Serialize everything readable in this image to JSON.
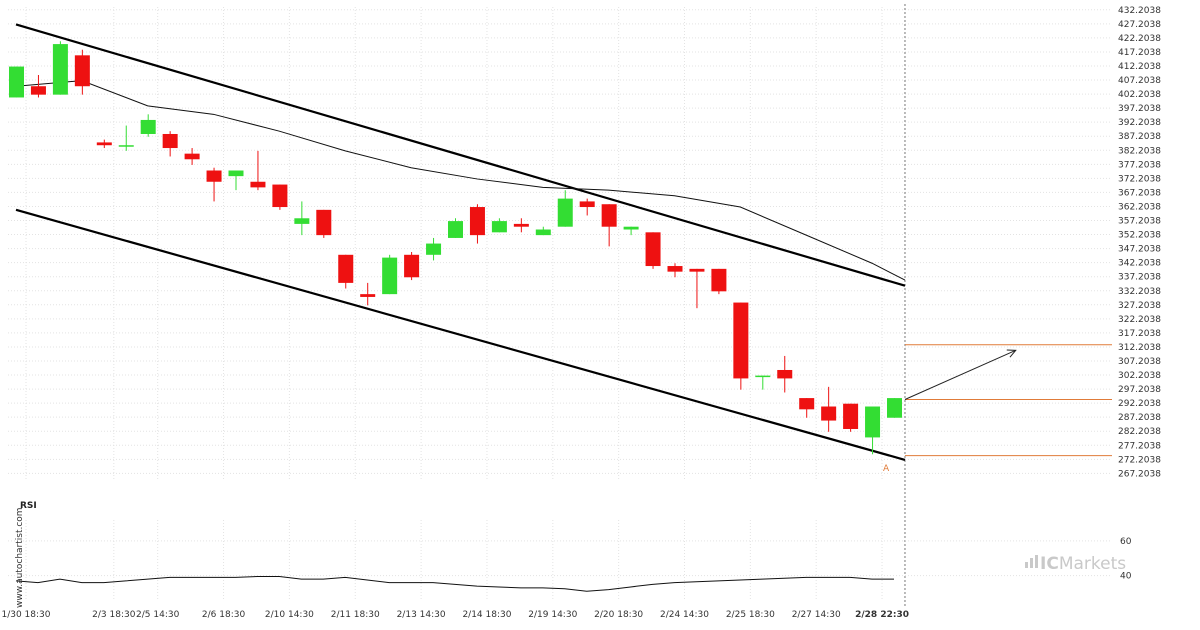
{
  "chart_data": {
    "type": "candlestick",
    "y_ticks": [
      "432.2038",
      "427.2038",
      "422.2038",
      "417.2038",
      "412.2038",
      "407.2038",
      "402.2038",
      "397.2038",
      "392.2038",
      "387.2038",
      "382.2038",
      "377.2038",
      "372.2038",
      "367.2038",
      "362.2038",
      "357.2038",
      "352.2038",
      "347.2038",
      "342.2038",
      "337.2038",
      "332.2038",
      "327.2038",
      "322.2038",
      "317.2038",
      "312.2038",
      "307.2038",
      "302.2038",
      "297.2038",
      "292.2038",
      "287.2038",
      "282.2038",
      "277.2038",
      "272.2038",
      "267.2038"
    ],
    "ylim": [
      265.2,
      433.2
    ],
    "x_ticks": [
      {
        "label": "1/30 18:30",
        "index": 0
      },
      {
        "label": "2/3 18:30",
        "index": 4
      },
      {
        "label": "2/5 14:30",
        "index": 6
      },
      {
        "label": "2/6 18:30",
        "index": 9
      },
      {
        "label": "2/10 14:30",
        "index": 12
      },
      {
        "label": "2/11 18:30",
        "index": 15
      },
      {
        "label": "2/13 14:30",
        "index": 18
      },
      {
        "label": "2/14 18:30",
        "index": 21
      },
      {
        "label": "2/19 14:30",
        "index": 24
      },
      {
        "label": "2/20 18:30",
        "index": 27
      },
      {
        "label": "2/24 14:30",
        "index": 30
      },
      {
        "label": "2/25 18:30",
        "index": 33
      },
      {
        "label": "2/27 14:30",
        "index": 36
      },
      {
        "label": "2/28 22:30",
        "index": 39,
        "bold": true
      }
    ],
    "candles": [
      {
        "o": 401,
        "h": 412,
        "l": 401,
        "c": 412
      },
      {
        "o": 405,
        "h": 409,
        "l": 401,
        "c": 402
      },
      {
        "o": 402,
        "h": 421,
        "l": 402,
        "c": 420
      },
      {
        "o": 416,
        "h": 418,
        "l": 402,
        "c": 405
      },
      {
        "o": 385,
        "h": 386,
        "l": 383,
        "c": 384
      },
      {
        "o": 384,
        "h": 391,
        "l": 382,
        "c": 384
      },
      {
        "o": 388,
        "h": 395,
        "l": 387,
        "c": 393
      },
      {
        "o": 388,
        "h": 389,
        "l": 380,
        "c": 383
      },
      {
        "o": 381,
        "h": 383,
        "l": 377,
        "c": 379
      },
      {
        "o": 375,
        "h": 376,
        "l": 364,
        "c": 371
      },
      {
        "o": 373,
        "h": 375,
        "l": 368,
        "c": 375
      },
      {
        "o": 371,
        "h": 382,
        "l": 368,
        "c": 369
      },
      {
        "o": 370,
        "h": 370,
        "l": 361,
        "c": 362
      },
      {
        "o": 356,
        "h": 364,
        "l": 352,
        "c": 358
      },
      {
        "o": 361,
        "h": 361,
        "l": 351,
        "c": 352
      },
      {
        "o": 345,
        "h": 345,
        "l": 333,
        "c": 335
      },
      {
        "o": 331,
        "h": 335,
        "l": 327,
        "c": 330
      },
      {
        "o": 331,
        "h": 345,
        "l": 331,
        "c": 344
      },
      {
        "o": 345,
        "h": 346,
        "l": 336,
        "c": 337
      },
      {
        "o": 345,
        "h": 351,
        "l": 343,
        "c": 349
      },
      {
        "o": 351,
        "h": 358,
        "l": 351,
        "c": 357
      },
      {
        "o": 362,
        "h": 363,
        "l": 349,
        "c": 352
      },
      {
        "o": 353,
        "h": 358,
        "l": 353,
        "c": 357
      },
      {
        "o": 356,
        "h": 358,
        "l": 353,
        "c": 355
      },
      {
        "o": 352,
        "h": 355,
        "l": 352,
        "c": 354
      },
      {
        "o": 355,
        "h": 368,
        "l": 355,
        "c": 365
      },
      {
        "o": 364,
        "h": 365,
        "l": 359,
        "c": 362
      },
      {
        "o": 363,
        "h": 363,
        "l": 348,
        "c": 355
      },
      {
        "o": 354,
        "h": 355,
        "l": 352,
        "c": 355
      },
      {
        "o": 353,
        "h": 353,
        "l": 340,
        "c": 341
      },
      {
        "o": 341,
        "h": 342,
        "l": 337,
        "c": 339
      },
      {
        "o": 340,
        "h": 340,
        "l": 326,
        "c": 339
      },
      {
        "o": 340,
        "h": 340,
        "l": 331,
        "c": 332
      },
      {
        "o": 328,
        "h": 328,
        "l": 297,
        "c": 301
      },
      {
        "o": 302,
        "h": 302,
        "l": 297,
        "c": 302
      },
      {
        "o": 304,
        "h": 309,
        "l": 296,
        "c": 301
      },
      {
        "o": 294,
        "h": 294,
        "l": 287,
        "c": 290
      },
      {
        "o": 291,
        "h": 298,
        "l": 282,
        "c": 286
      },
      {
        "o": 292,
        "h": 292,
        "l": 282,
        "c": 283
      },
      {
        "o": 280,
        "h": 290,
        "l": 274,
        "c": 291
      },
      {
        "o": 287,
        "h": 294,
        "l": 287,
        "c": 294
      }
    ],
    "moving_average": [
      [
        0,
        405
      ],
      [
        3,
        407
      ],
      [
        6,
        398
      ],
      [
        9,
        395
      ],
      [
        12,
        389
      ],
      [
        15,
        382
      ],
      [
        18,
        376
      ],
      [
        21,
        372
      ],
      [
        24,
        369
      ],
      [
        27,
        368
      ],
      [
        30,
        366
      ],
      [
        33,
        362
      ],
      [
        36,
        352
      ],
      [
        39,
        342
      ],
      [
        40.5,
        336
      ]
    ],
    "channel_upper": [
      [
        0,
        427
      ],
      [
        40.5,
        334
      ]
    ],
    "channel_lower": [
      [
        0,
        361
      ],
      [
        40.5,
        272
      ]
    ],
    "horizontal_levels": [
      313,
      293.5,
      273.5
    ],
    "projection": {
      "from": [
        40.5,
        293.5
      ],
      "to": [
        45,
        311
      ]
    },
    "point_label": "A",
    "point_label_at": [
      39.5,
      268
    ],
    "rsi": {
      "title": "RSI",
      "y_ticks": [
        "60",
        "40"
      ],
      "ylim": [
        26,
        72
      ],
      "values": [
        37,
        36,
        38,
        36,
        36,
        37,
        38,
        39,
        39,
        39,
        39,
        39.5,
        39.5,
        38,
        38,
        39,
        37.5,
        36,
        36,
        36,
        35,
        34,
        33.5,
        33,
        33,
        32.5,
        31,
        32,
        33.5,
        35,
        36,
        36.5,
        37,
        37.5,
        38,
        38.5,
        39,
        39,
        39,
        38,
        38
      ]
    },
    "grid": true,
    "legend": "none"
  },
  "watermark_text": "www.autochartist.com",
  "brand": {
    "part1": "IC",
    "part2": "Markets"
  }
}
